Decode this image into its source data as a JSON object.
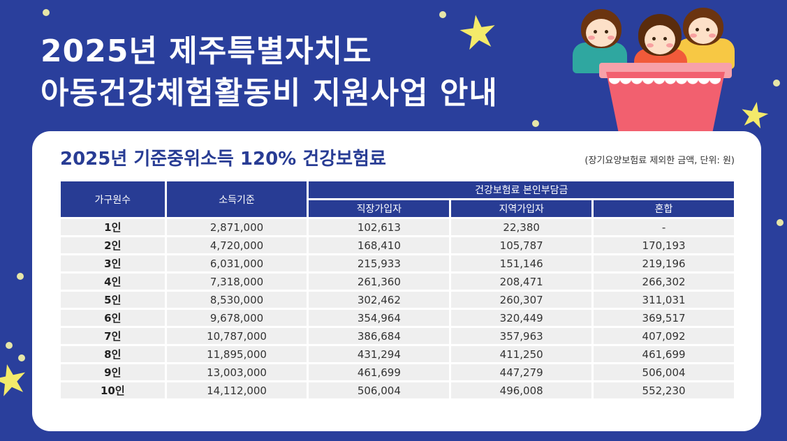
{
  "title": {
    "line1": "2025년 제주특별자치도",
    "line2": "아동건강체험활동비 지원사업 안내"
  },
  "card": {
    "title": "2025년 기준중위소득 120% 건강보험료",
    "note": "(장기요양보험료 제외한 금액, 단위: 원)"
  },
  "table": {
    "headers": {
      "group": "가구원수",
      "income": "소득기준",
      "premium": "건강보험료 본인부담금",
      "workplace": "직장가입자",
      "regional": "지역가입자",
      "mixed": "혼합"
    },
    "rows": [
      {
        "group": "1인",
        "income": "2,871,000",
        "workplace": "102,613",
        "regional": "22,380",
        "mixed": "-"
      },
      {
        "group": "2인",
        "income": "4,720,000",
        "workplace": "168,410",
        "regional": "105,787",
        "mixed": "170,193"
      },
      {
        "group": "3인",
        "income": "6,031,000",
        "workplace": "215,933",
        "regional": "151,146",
        "mixed": "219,196"
      },
      {
        "group": "4인",
        "income": "7,318,000",
        "workplace": "261,360",
        "regional": "208,471",
        "mixed": "266,302"
      },
      {
        "group": "5인",
        "income": "8,530,000",
        "workplace": "302,462",
        "regional": "260,307",
        "mixed": "311,031"
      },
      {
        "group": "6인",
        "income": "9,678,000",
        "workplace": "354,964",
        "regional": "320,449",
        "mixed": "369,517"
      },
      {
        "group": "7인",
        "income": "10,787,000",
        "workplace": "386,684",
        "regional": "357,963",
        "mixed": "407,092"
      },
      {
        "group": "8인",
        "income": "11,895,000",
        "workplace": "431,294",
        "regional": "411,250",
        "mixed": "461,699"
      },
      {
        "group": "9인",
        "income": "13,003,000",
        "workplace": "461,699",
        "regional": "447,279",
        "mixed": "506,004"
      },
      {
        "group": "10인",
        "income": "14,112,000",
        "workplace": "506,004",
        "regional": "496,008",
        "mixed": "552,230"
      }
    ]
  },
  "colors": {
    "background": "#2a3f9c",
    "header": "#283c94",
    "star": "#f4ea6a",
    "cell": "#efefef"
  }
}
